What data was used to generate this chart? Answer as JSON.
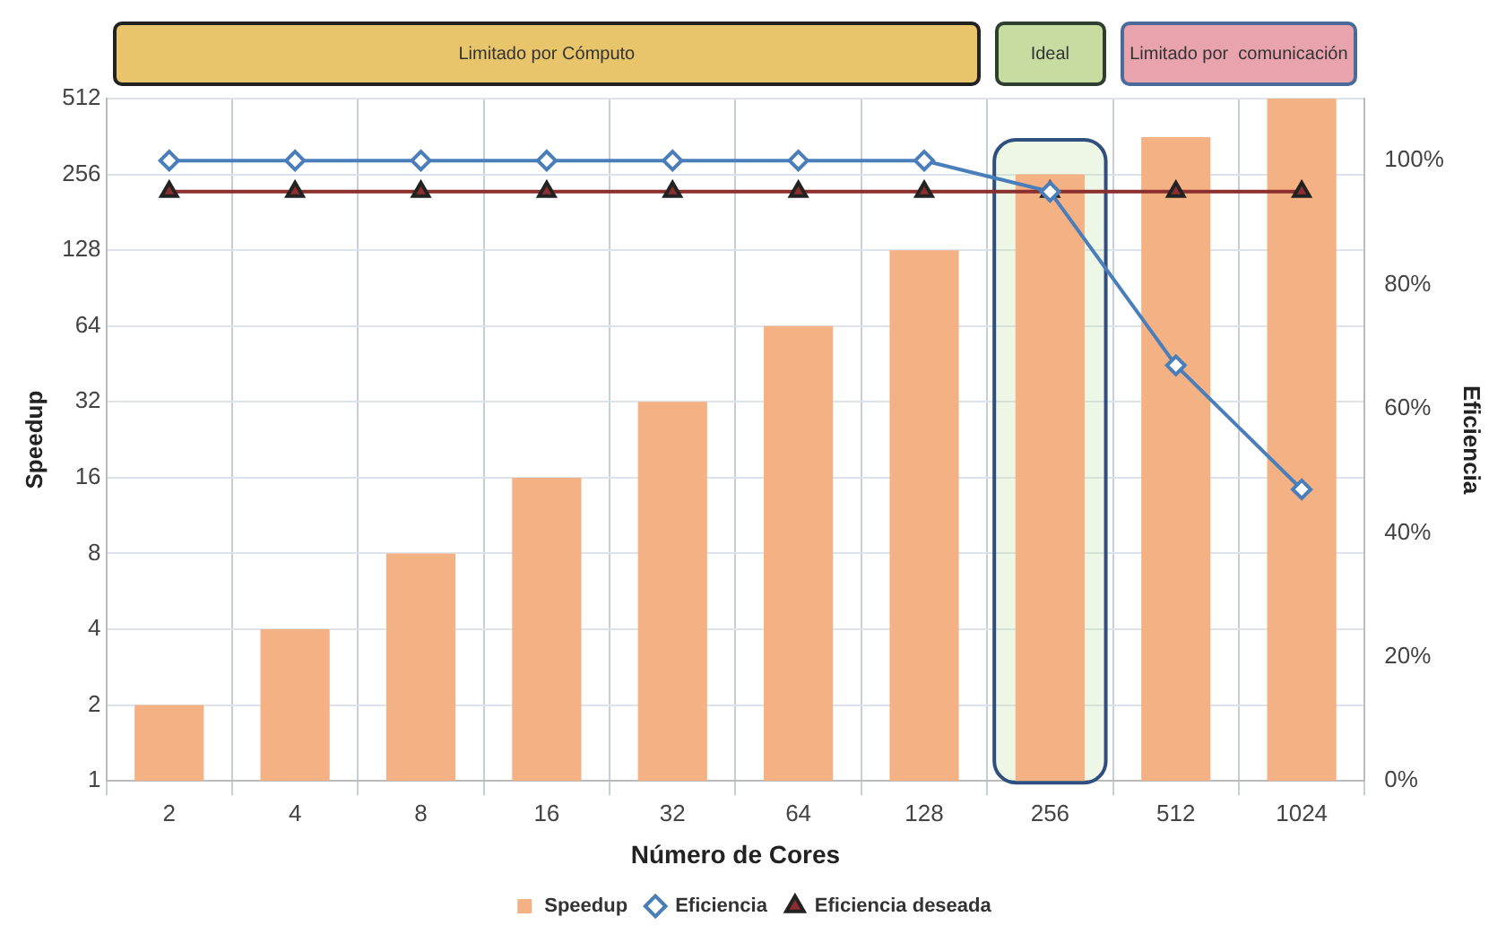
{
  "chart_data": {
    "type": "bar",
    "categories": [
      "2",
      "4",
      "8",
      "16",
      "32",
      "64",
      "128",
      "256",
      "512",
      "1024"
    ],
    "series": [
      {
        "name": "Speedup",
        "color": "#f4b183",
        "values": [
          2,
          4,
          8,
          16,
          32,
          64,
          128,
          256,
          360,
          512
        ]
      },
      {
        "name": "Eficiencia",
        "type": "line",
        "axis": "y2",
        "color": "#4a7ebb",
        "marker": "diamond",
        "values": [
          100,
          100,
          100,
          100,
          100,
          100,
          100,
          95,
          67,
          47
        ]
      },
      {
        "name": "Eficiencia deseada",
        "type": "line",
        "axis": "y2",
        "color": "#8b2e2e",
        "marker": "triangle",
        "values": [
          95,
          95,
          95,
          95,
          95,
          95,
          95,
          95,
          95,
          95
        ]
      }
    ],
    "xlabel": "Número de Cores",
    "ylabel": "Speedup",
    "y2label": "Eficiencia",
    "log": "y",
    "ylim": [
      1,
      512
    ],
    "yticks": [
      1,
      2,
      4,
      8,
      16,
      32,
      64,
      128,
      256,
      512
    ],
    "y2lim": [
      0,
      110
    ],
    "y2ticks": [
      {
        "value": 0,
        "label": "0%"
      },
      {
        "value": 20,
        "label": "20%"
      },
      {
        "value": 40,
        "label": "40%"
      },
      {
        "value": 60,
        "label": "60%"
      },
      {
        "value": 80,
        "label": "80%"
      },
      {
        "value": 100,
        "label": "100%"
      }
    ],
    "annotations": [
      "Limitado por Cómputo",
      "Ideal",
      "Limitado por  comunicación"
    ],
    "bands": [
      {
        "axis": "x",
        "from": "256",
        "to": "256",
        "color": "#c8e1aa"
      }
    ],
    "grid": true,
    "legend": "bottom",
    "line_style": "solid"
  }
}
